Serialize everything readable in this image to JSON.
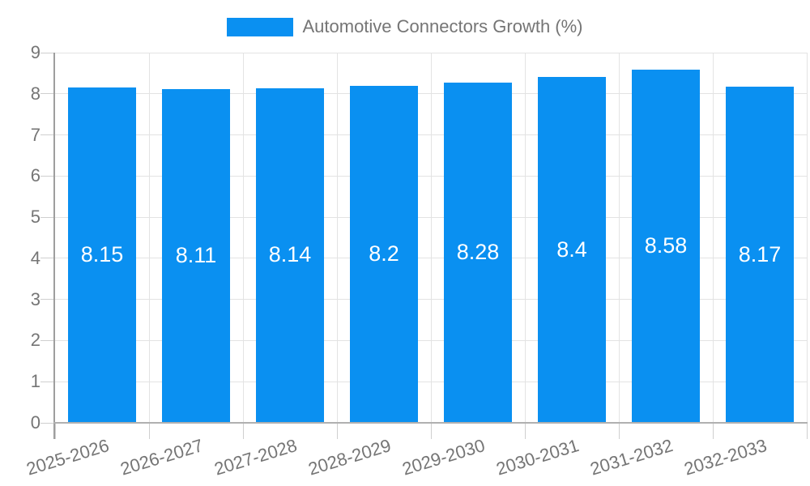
{
  "chart_data": {
    "type": "bar",
    "title": "",
    "legend": "Automotive Connectors Growth (%)",
    "categories": [
      "2025-2026",
      "2026-2027",
      "2027-2028",
      "2028-2029",
      "2029-2030",
      "2030-2031",
      "2031-2032",
      "2032-2033"
    ],
    "values": [
      8.15,
      8.11,
      8.14,
      8.2,
      8.28,
      8.4,
      8.58,
      8.17
    ],
    "labels": [
      "8.15",
      "8.11",
      "8.14",
      "8.2",
      "8.28",
      "8.4",
      "8.58",
      "8.17"
    ],
    "xlabel": "",
    "ylabel": "",
    "ylim": [
      0,
      9
    ],
    "yticks": [
      0,
      1,
      2,
      3,
      4,
      5,
      6,
      7,
      8,
      9
    ],
    "grid": true,
    "legend_position": "top",
    "colors": {
      "bar": "#0a90f1",
      "text": "#757575",
      "grid": "#e3e3e3",
      "tick": "#cfcfcf",
      "axis": "#9e9e9e",
      "baseline": "#b0b0b0",
      "value_label": "#ffffff",
      "background": "#ffffff"
    }
  }
}
